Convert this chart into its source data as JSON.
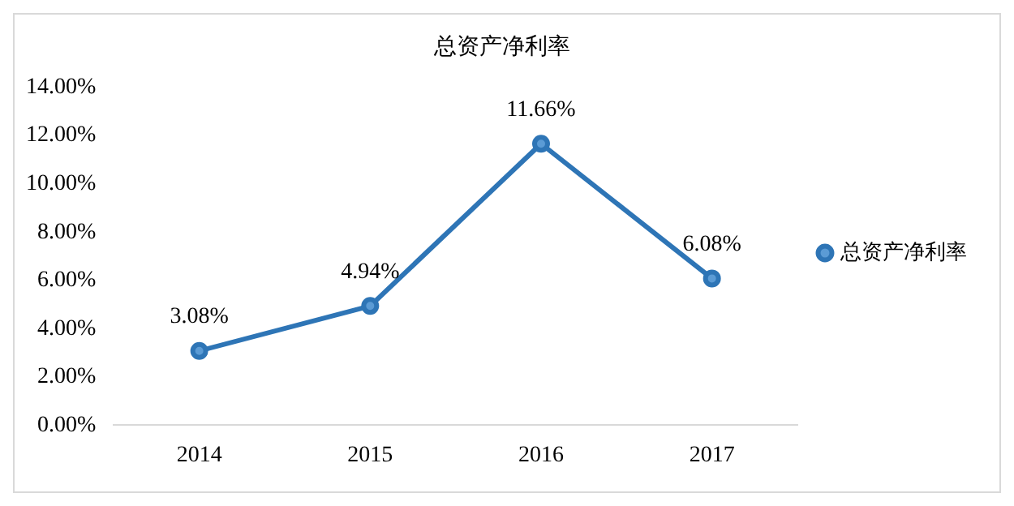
{
  "chart_data": {
    "type": "line",
    "title": "总资产净利率",
    "categories": [
      "2014",
      "2015",
      "2016",
      "2017"
    ],
    "series": [
      {
        "name": "总资产净利率",
        "color": "#2e75b6",
        "values": [
          3.08,
          4.94,
          11.66,
          6.08
        ],
        "value_labels": [
          "3.08%",
          "4.94%",
          "11.66%",
          "6.08%"
        ]
      }
    ],
    "ylim": [
      0,
      14
    ],
    "yticks": [
      {
        "value": 0,
        "label": "0.00%"
      },
      {
        "value": 2,
        "label": "2.00%"
      },
      {
        "value": 4,
        "label": "4.00%"
      },
      {
        "value": 6,
        "label": "6.00%"
      },
      {
        "value": 8,
        "label": "8.00%"
      },
      {
        "value": 10,
        "label": "10.00%"
      },
      {
        "value": 12,
        "label": "12.00%"
      },
      {
        "value": 14,
        "label": "14.00%"
      }
    ],
    "grid": false,
    "legend": "right",
    "marker": "circle",
    "line_style": "solid"
  }
}
